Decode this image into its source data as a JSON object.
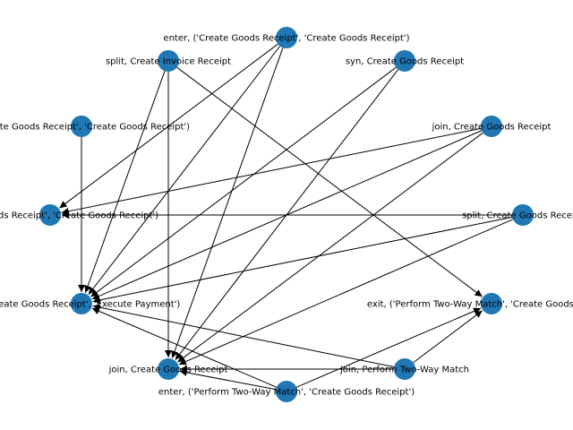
{
  "graph": {
    "node_color": "#1f77b4",
    "edge_color": "#000000",
    "nodes": [
      {
        "id": "n_enter_cgr",
        "label": "enter, ('Create Goods Receipt', 'Create Goods Receipt')"
      },
      {
        "id": "n_syn_cgr",
        "label": "syn, Create Goods Receipt"
      },
      {
        "id": "n_join_cgr_top",
        "label": "join, Create Goods Receipt"
      },
      {
        "id": "n_split_cgr",
        "label": "split, Create Goods Receipt"
      },
      {
        "id": "n_exit_ptwm",
        "label": "exit, ('Perform Two-Way Match', 'Create Goods Receipt')"
      },
      {
        "id": "n_join_ptwm",
        "label": "join, Perform Two-Way Match"
      },
      {
        "id": "n_enter_ptwm",
        "label": "enter, ('Perform Two-Way Match', 'Create Goods Receipt')"
      },
      {
        "id": "n_join_cgr_bottom",
        "label": "join, Create Goods Receipt"
      },
      {
        "id": "n_cgr_ep",
        "label": "('Create Goods Receipt', 'Execute Payment')"
      },
      {
        "id": "n_cgr_cgr_left",
        "label": "('Create Goods Receipt', 'Create Goods Receipt')"
      },
      {
        "id": "n_cgr_cgr_upper",
        "label": "('Create Goods Receipt', 'Create Goods Receipt')"
      },
      {
        "id": "n_split_cir",
        "label": "split, Create Invoice Receipt"
      }
    ],
    "edges": [
      {
        "source": "n_enter_cgr",
        "target": "n_cgr_cgr_left"
      },
      {
        "source": "n_enter_cgr",
        "target": "n_cgr_ep"
      },
      {
        "source": "n_enter_cgr",
        "target": "n_join_cgr_bottom"
      },
      {
        "source": "n_split_cir",
        "target": "n_cgr_ep"
      },
      {
        "source": "n_split_cir",
        "target": "n_join_cgr_bottom"
      },
      {
        "source": "n_split_cir",
        "target": "n_exit_ptwm"
      },
      {
        "source": "n_syn_cgr",
        "target": "n_cgr_ep"
      },
      {
        "source": "n_syn_cgr",
        "target": "n_join_cgr_bottom"
      },
      {
        "source": "n_join_cgr_top",
        "target": "n_cgr_cgr_left"
      },
      {
        "source": "n_join_cgr_top",
        "target": "n_cgr_ep"
      },
      {
        "source": "n_join_cgr_top",
        "target": "n_join_cgr_bottom"
      },
      {
        "source": "n_split_cgr",
        "target": "n_cgr_cgr_left"
      },
      {
        "source": "n_split_cgr",
        "target": "n_cgr_ep"
      },
      {
        "source": "n_split_cgr",
        "target": "n_join_cgr_bottom"
      },
      {
        "source": "n_cgr_cgr_upper",
        "target": "n_cgr_ep"
      },
      {
        "source": "n_join_ptwm",
        "target": "n_cgr_ep"
      },
      {
        "source": "n_join_ptwm",
        "target": "n_join_cgr_bottom"
      },
      {
        "source": "n_join_ptwm",
        "target": "n_exit_ptwm"
      },
      {
        "source": "n_enter_ptwm",
        "target": "n_cgr_ep"
      },
      {
        "source": "n_enter_ptwm",
        "target": "n_join_cgr_bottom"
      },
      {
        "source": "n_enter_ptwm",
        "target": "n_exit_ptwm"
      }
    ]
  }
}
